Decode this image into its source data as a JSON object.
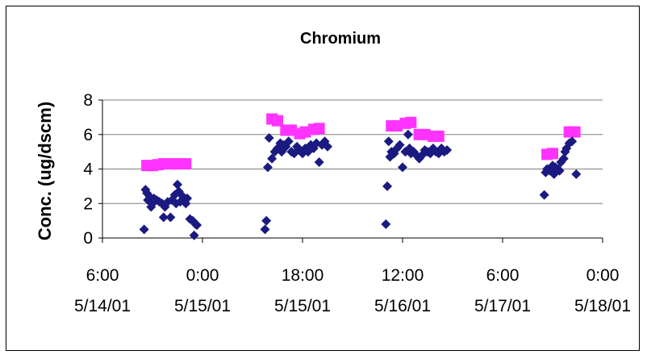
{
  "chart_data": {
    "type": "scatter",
    "title": "Chromium",
    "xlabel": "",
    "ylabel": "Conc. (ug/dscm)",
    "ylim": [
      0,
      8
    ],
    "y_ticks": [
      "0",
      "2",
      "4",
      "6",
      "8"
    ],
    "xlim": [
      "5/14/01 6:00",
      "5/18/01 0:00"
    ],
    "x_ticks": [
      {
        "time": "6:00",
        "date": "5/14/01"
      },
      {
        "time": "0:00",
        "date": "5/15/01"
      },
      {
        "time": "18:00",
        "date": "5/15/01"
      },
      {
        "time": "12:00",
        "date": "5/16/01"
      },
      {
        "time": "6:00",
        "date": "5/17/01"
      },
      {
        "time": "0:00",
        "date": "5/18/01"
      }
    ],
    "grid": "horizontal",
    "legend": "none",
    "colors": {
      "measured": "#1a1a80",
      "limit": "#ff33ff",
      "grid": "#808080"
    },
    "series": [
      {
        "marker": "diamond",
        "points": [
          [
            "5/14/01 13:30",
            0.5
          ],
          [
            "5/14/01 13:45",
            2.8
          ],
          [
            "5/14/01 14:00",
            2.6
          ],
          [
            "5/14/01 14:10",
            2.2
          ],
          [
            "5/14/01 14:30",
            2.4
          ],
          [
            "5/14/01 14:45",
            1.8
          ],
          [
            "5/14/01 15:00",
            2.0
          ],
          [
            "5/14/01 15:15",
            2.3
          ],
          [
            "5/14/01 15:45",
            2.2
          ],
          [
            "5/14/01 16:15",
            2.1
          ],
          [
            "5/14/01 16:45",
            2.0
          ],
          [
            "5/14/01 17:00",
            1.2
          ],
          [
            "5/14/01 17:15",
            1.8
          ],
          [
            "5/14/01 17:45",
            2.1
          ],
          [
            "5/14/01 18:15",
            1.2
          ],
          [
            "5/14/01 18:30",
            2.2
          ],
          [
            "5/14/01 19:00",
            2.5
          ],
          [
            "5/14/01 19:15",
            2.0
          ],
          [
            "5/14/01 19:30",
            3.1
          ],
          [
            "5/14/01 19:45",
            2.7
          ],
          [
            "5/14/01 20:00",
            2.1
          ],
          [
            "5/14/01 20:30",
            2.4
          ],
          [
            "5/14/01 20:45",
            2.2
          ],
          [
            "5/14/01 21:00",
            2.0
          ],
          [
            "5/14/01 21:15",
            2.3
          ],
          [
            "5/14/01 21:45",
            1.1
          ],
          [
            "5/14/01 22:15",
            1.0
          ],
          [
            "5/14/01 22:30",
            0.15
          ],
          [
            "5/14/01 22:45",
            0.8
          ],
          [
            "5/14/01 23:00",
            0.75
          ],
          [
            "5/15/01 11:15",
            0.5
          ],
          [
            "5/15/01 11:30",
            1.0
          ],
          [
            "5/15/01 11:45",
            4.1
          ],
          [
            "5/15/01 12:00",
            5.8
          ],
          [
            "5/15/01 12:30",
            4.6
          ],
          [
            "5/15/01 13:00",
            5.0
          ],
          [
            "5/15/01 13:30",
            5.2
          ],
          [
            "5/15/01 14:00",
            5.5
          ],
          [
            "5/15/01 14:15",
            5.0
          ],
          [
            "5/15/01 14:30",
            5.4
          ],
          [
            "5/15/01 15:00",
            5.3
          ],
          [
            "5/15/01 15:30",
            5.6
          ],
          [
            "5/15/01 16:00",
            5.0
          ],
          [
            "5/15/01 16:30",
            4.9
          ],
          [
            "5/15/01 17:00",
            5.3
          ],
          [
            "5/15/01 17:30",
            5.1
          ],
          [
            "5/15/01 18:00",
            4.9
          ],
          [
            "5/15/01 18:30",
            5.2
          ],
          [
            "5/15/01 19:00",
            5.0
          ],
          [
            "5/15/01 19:30",
            5.4
          ],
          [
            "5/15/01 20:00",
            5.2
          ],
          [
            "5/15/01 20:30",
            5.5
          ],
          [
            "5/15/01 21:00",
            4.4
          ],
          [
            "5/15/01 21:30",
            5.4
          ],
          [
            "5/15/01 22:00",
            5.6
          ],
          [
            "5/15/01 22:30",
            5.3
          ],
          [
            "5/16/01 9:00",
            0.8
          ],
          [
            "5/16/01 9:15",
            3.0
          ],
          [
            "5/16/01 9:30",
            5.6
          ],
          [
            "5/16/01 9:45",
            4.7
          ],
          [
            "5/16/01 10:00",
            5.0
          ],
          [
            "5/16/01 10:30",
            4.9
          ],
          [
            "5/16/01 11:00",
            5.2
          ],
          [
            "5/16/01 11:30",
            5.4
          ],
          [
            "5/16/01 12:00",
            4.1
          ],
          [
            "5/16/01 12:30",
            5.0
          ],
          [
            "5/16/01 13:00",
            6.0
          ],
          [
            "5/16/01 13:15",
            5.2
          ],
          [
            "5/16/01 13:30",
            4.9
          ],
          [
            "5/16/01 14:00",
            5.0
          ],
          [
            "5/16/01 14:30",
            4.8
          ],
          [
            "5/16/01 15:00",
            4.6
          ],
          [
            "5/16/01 15:30",
            4.8
          ],
          [
            "5/16/01 16:00",
            5.1
          ],
          [
            "5/16/01 16:30",
            5.0
          ],
          [
            "5/16/01 17:00",
            4.9
          ],
          [
            "5/16/01 17:30",
            5.2
          ],
          [
            "5/16/01 18:00",
            5.0
          ],
          [
            "5/16/01 18:30",
            4.9
          ],
          [
            "5/16/01 19:00",
            5.2
          ],
          [
            "5/16/01 19:30",
            5.0
          ],
          [
            "5/16/01 20:00",
            5.1
          ],
          [
            "5/17/01 13:30",
            2.5
          ],
          [
            "5/17/01 13:45",
            3.8
          ],
          [
            "5/17/01 14:00",
            4.0
          ],
          [
            "5/17/01 14:30",
            3.9
          ],
          [
            "5/17/01 15:00",
            4.2
          ],
          [
            "5/17/01 15:15",
            3.7
          ],
          [
            "5/17/01 15:30",
            4.1
          ],
          [
            "5/17/01 16:00",
            4.0
          ],
          [
            "5/17/01 16:15",
            3.9
          ],
          [
            "5/17/01 16:30",
            4.4
          ],
          [
            "5/17/01 17:00",
            4.6
          ],
          [
            "5/17/01 17:15",
            5.0
          ],
          [
            "5/17/01 17:30",
            5.2
          ],
          [
            "5/17/01 18:00",
            5.5
          ],
          [
            "5/17/01 18:30",
            5.6
          ],
          [
            "5/17/01 19:15",
            3.7
          ]
        ]
      },
      {
        "marker": "square",
        "points": [
          [
            "5/14/01 14:00",
            4.2
          ],
          [
            "5/14/01 15:00",
            4.2
          ],
          [
            "5/14/01 16:00",
            4.25
          ],
          [
            "5/14/01 17:00",
            4.3
          ],
          [
            "5/14/01 18:00",
            4.3
          ],
          [
            "5/14/01 19:00",
            4.3
          ],
          [
            "5/14/01 20:00",
            4.3
          ],
          [
            "5/14/01 21:00",
            4.3
          ],
          [
            "5/15/01 12:30",
            6.9
          ],
          [
            "5/15/01 13:30",
            6.8
          ],
          [
            "5/15/01 15:00",
            6.25
          ],
          [
            "5/15/01 16:00",
            6.25
          ],
          [
            "5/15/01 17:30",
            6.05
          ],
          [
            "5/15/01 18:30",
            6.15
          ],
          [
            "5/15/01 20:00",
            6.3
          ],
          [
            "5/15/01 21:00",
            6.35
          ],
          [
            "5/16/01 10:00",
            6.5
          ],
          [
            "5/16/01 11:00",
            6.5
          ],
          [
            "5/16/01 12:30",
            6.65
          ],
          [
            "5/16/01 13:30",
            6.7
          ],
          [
            "5/16/01 15:00",
            6.0
          ],
          [
            "5/16/01 16:00",
            6.0
          ],
          [
            "5/16/01 17:30",
            5.9
          ],
          [
            "5/16/01 18:30",
            5.9
          ],
          [
            "5/17/01 14:00",
            4.85
          ],
          [
            "5/17/01 15:00",
            4.9
          ],
          [
            "5/17/01 18:00",
            6.15
          ],
          [
            "5/17/01 19:00",
            6.15
          ]
        ]
      }
    ]
  }
}
